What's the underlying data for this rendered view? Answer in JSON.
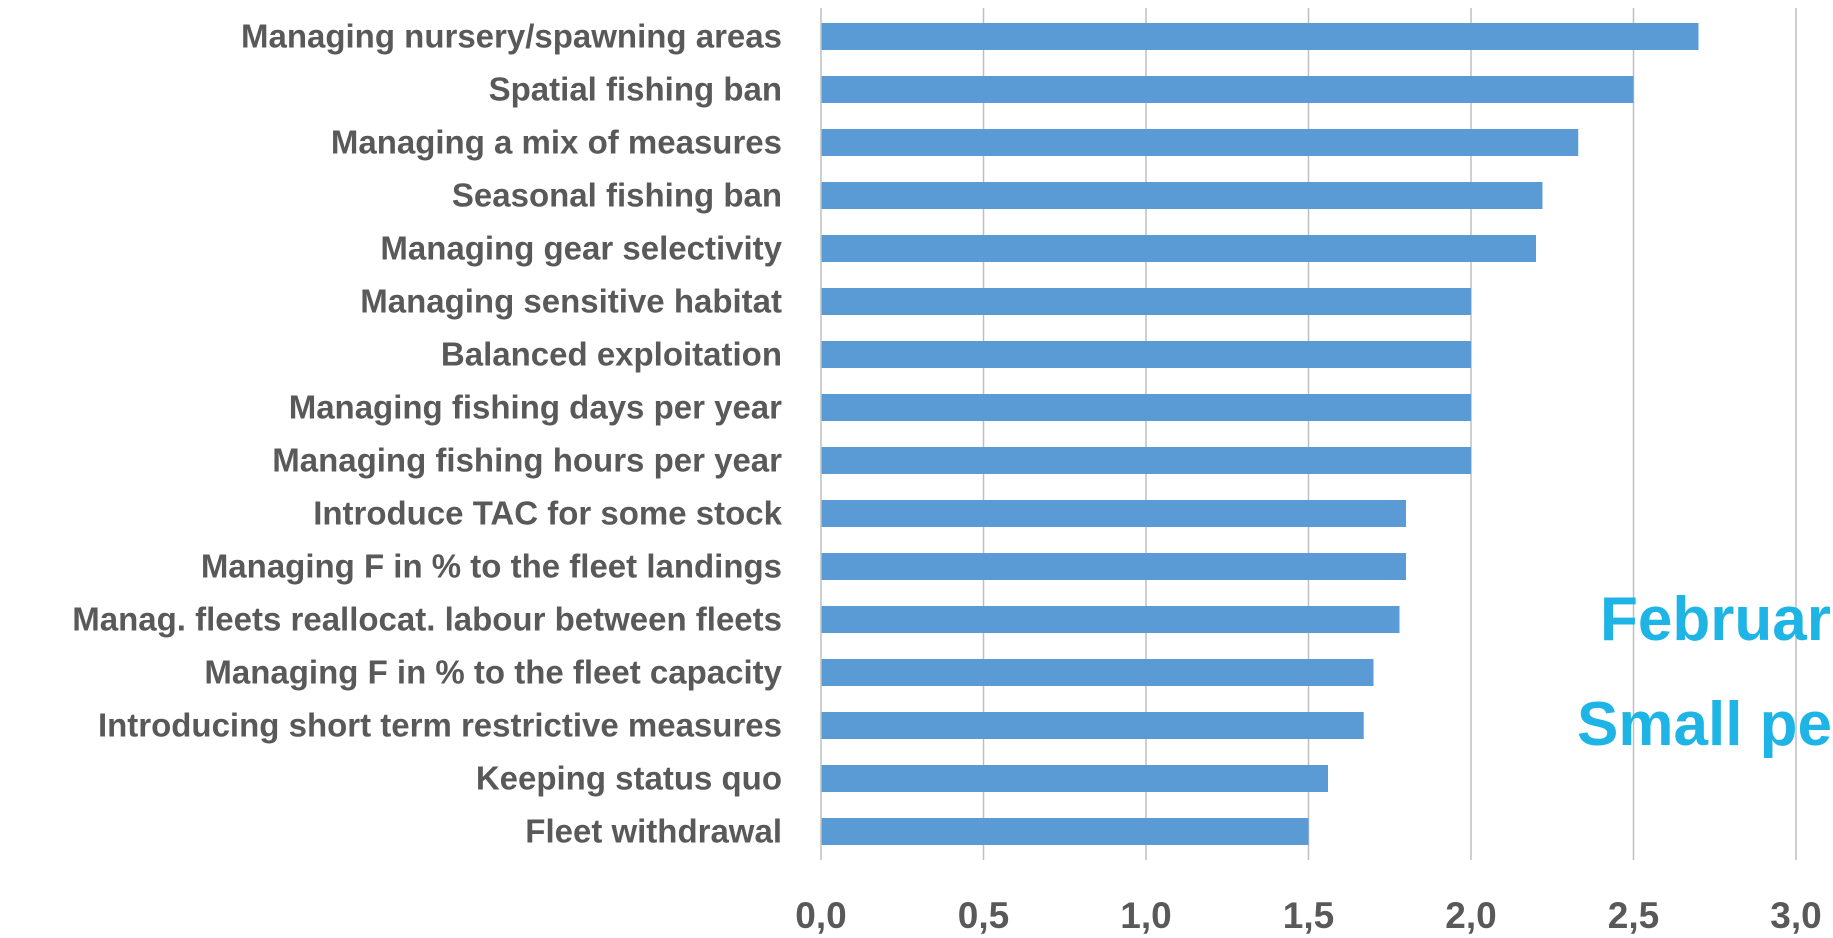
{
  "chart_data": {
    "type": "bar",
    "orientation": "horizontal",
    "categories": [
      "Managing nursery/spawning areas",
      "Spatial fishing ban",
      "Managing a mix of measures",
      "Seasonal fishing ban",
      "Managing gear selectivity",
      "Managing sensitive habitat",
      "Balanced exploitation",
      "Managing fishing days per year",
      "Managing fishing hours per year",
      "Introduce TAC for some stock",
      "Managing F in % to the fleet landings",
      "Manag. fleets reallocat. labour between fleets",
      "Managing F in % to the fleet capacity",
      "Introducing short term restrictive measures",
      "Keeping status quo",
      "Fleet withdrawal"
    ],
    "values": [
      2.7,
      2.5,
      2.33,
      2.22,
      2.2,
      2.0,
      2.0,
      2.0,
      2.0,
      1.8,
      1.8,
      1.78,
      1.7,
      1.67,
      1.56,
      1.5
    ],
    "xlim": [
      0,
      3.0
    ],
    "xticks": [
      "0,0",
      "0,5",
      "1,0",
      "1,5",
      "2,0",
      "2,5",
      "3,0"
    ],
    "grid": "vertical",
    "bar_color": "#5b9bd5",
    "title": "",
    "xlabel": "",
    "ylabel": ""
  },
  "overlay_text": {
    "line1": "Februar",
    "line2": "Small pe"
  },
  "colors": {
    "text": "#595959",
    "grid": "#bfbfbf",
    "axis": "#bfbfbf",
    "overlay": "#1fb4e6"
  }
}
